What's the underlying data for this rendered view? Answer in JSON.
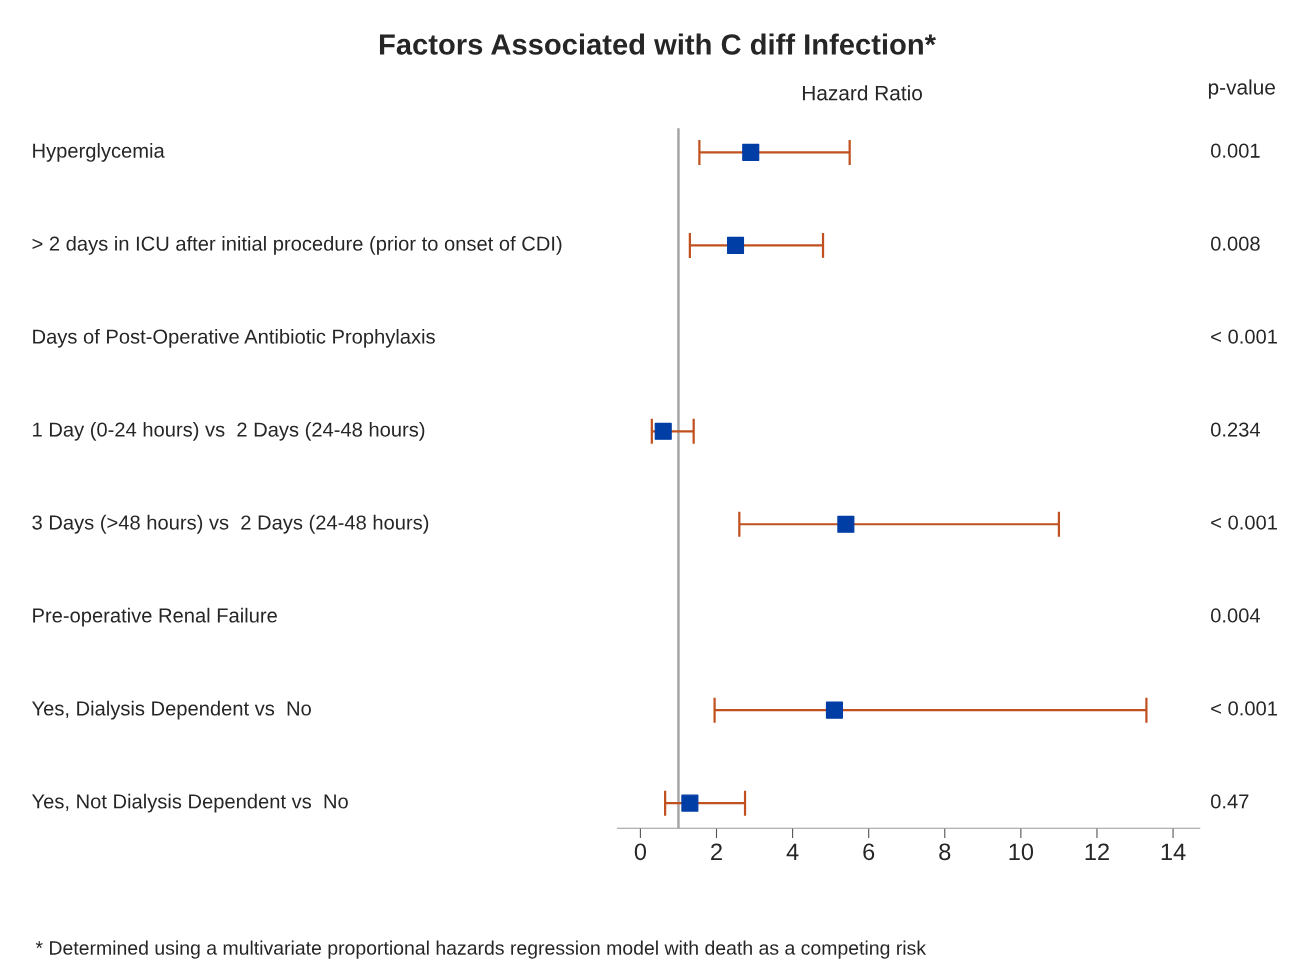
{
  "chart_data": {
    "type": "scatter",
    "orientation": "horizontal",
    "title": "Factors Associated with C diff Infection*",
    "xlabel": "Hazard Ratio",
    "y2label": "p-value",
    "categories": [
      "Hyperglycemia",
      "> 2 days in ICU after initial procedure (prior to onset of CDI)",
      "Days of Post-Operative Antibiotic Prophylaxis",
      "1 Day (0-24 hours) vs  2 Days (24-48 hours)",
      "3 Days (>48 hours) vs  2 Days (24-48 hours)",
      "Pre-operative Renal Failure",
      "Yes, Dialysis Dependent vs  No",
      "Yes, Not Dialysis Dependent vs  No"
    ],
    "y2_categories": [
      "0.001",
      "0.008",
      "< 0.001",
      "0.234",
      "< 0.001",
      "0.004",
      "< 0.001",
      "0.47"
    ],
    "color": "#003da5",
    "values": [
      2.9,
      2.5,
      null,
      0.6,
      5.4,
      null,
      5.1,
      1.3
    ],
    "errors": [
      [
        1.55,
        5.5
      ],
      [
        1.3,
        4.8
      ],
      null,
      [
        0.3,
        1.4
      ],
      [
        2.6,
        11.0
      ],
      null,
      [
        1.95,
        13.3
      ],
      [
        0.65,
        2.75
      ]
    ],
    "marker": "square",
    "grid": false,
    "legend": false,
    "xlim": [
      -0.6,
      14.7
    ],
    "xticks": [
      0,
      2,
      4,
      6,
      8,
      10,
      12,
      14
    ],
    "ref_lines": [
      {
        "axis": "x",
        "value": 1,
        "color": "#a6a6a6"
      }
    ],
    "annotations": [
      "* Determined using a multivariate proportional hazards regression model with death as a competing risk"
    ]
  }
}
